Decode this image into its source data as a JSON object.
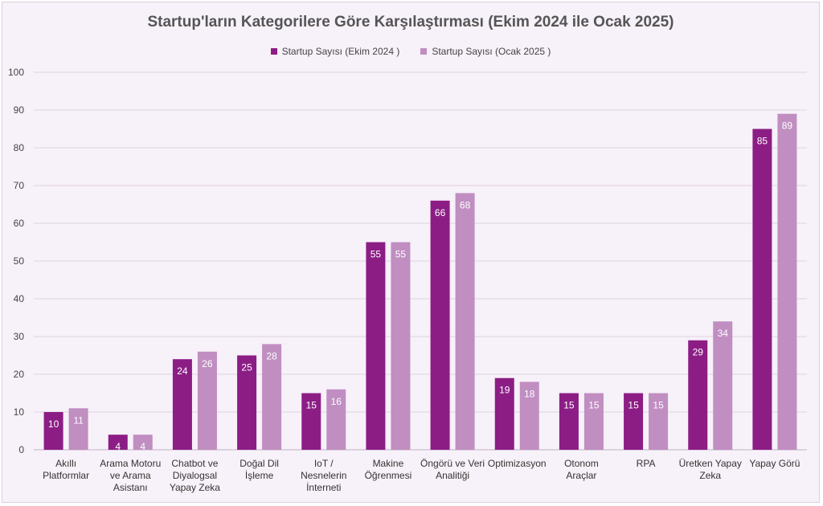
{
  "colors": {
    "series_1": "#8c1d85",
    "series_2": "#c08ec1",
    "background": "#f7f1f9",
    "grid": "#ddd3e0"
  },
  "chart_data": {
    "type": "bar",
    "title": "Startup'ların Kategorilere Göre Karşılaştırması (Ekim 2024 ile Ocak 2025)",
    "legend_position": "top",
    "grid": true,
    "ylim": [
      0,
      100
    ],
    "yticks": [
      0,
      10,
      20,
      30,
      40,
      50,
      60,
      70,
      80,
      90,
      100
    ],
    "categories": [
      [
        "Akıllı",
        "Platformlar"
      ],
      [
        "Arama Motoru",
        "ve Arama",
        "Asistanı"
      ],
      [
        "Chatbot ve",
        "Diyalogsal",
        "Yapay Zeka"
      ],
      [
        "Doğal Dil",
        "İşleme"
      ],
      [
        "IoT /",
        "Nesnelerin",
        "İnterneti"
      ],
      [
        "Makine",
        "Öğrenmesi"
      ],
      [
        "Öngörü ve Veri",
        "Analitiği"
      ],
      [
        "Optimizasyon"
      ],
      [
        "Otonom",
        "Araçlar"
      ],
      [
        "RPA"
      ],
      [
        "Üretken Yapay",
        "Zeka"
      ],
      [
        "Yapay Görü"
      ]
    ],
    "series": [
      {
        "name": "Startup Sayısı (Ekim 2024 )",
        "values": [
          10,
          4,
          24,
          25,
          15,
          55,
          66,
          19,
          15,
          15,
          29,
          85
        ]
      },
      {
        "name": "Startup Sayısı (Ocak 2025 )",
        "values": [
          11,
          4,
          26,
          28,
          16,
          55,
          68,
          18,
          15,
          15,
          34,
          89
        ]
      }
    ]
  }
}
